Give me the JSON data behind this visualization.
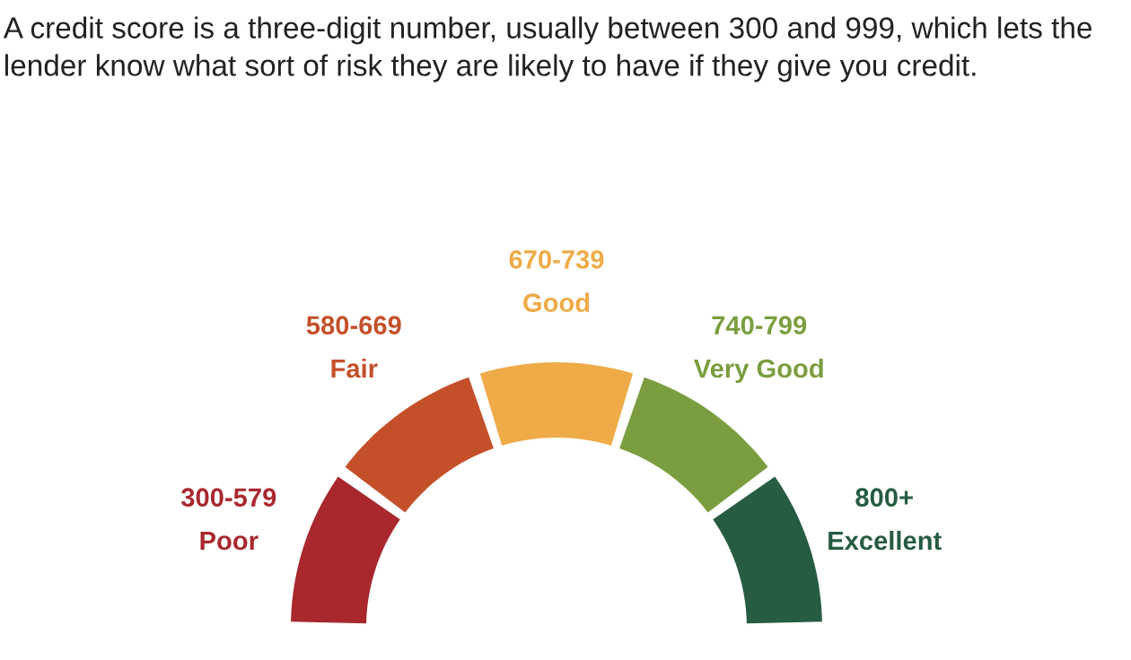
{
  "chart_data": {
    "type": "donut",
    "title": "A credit score is a three-digit number, usually between 300 and 999, which lets the lender know what sort of risk they are likely to have if they give you credit.",
    "categories": [
      "300-579\nPoor",
      "580-669\nFair",
      "670-739\nGood",
      "740-799\nVery Good",
      "800+\nExcellent"
    ],
    "values": [
      20,
      20,
      20,
      20,
      20
    ],
    "colors": [
      "#a8282e",
      "#c4502a",
      "#eeab48",
      "#7a9e3f",
      "#265c41"
    ]
  }
}
